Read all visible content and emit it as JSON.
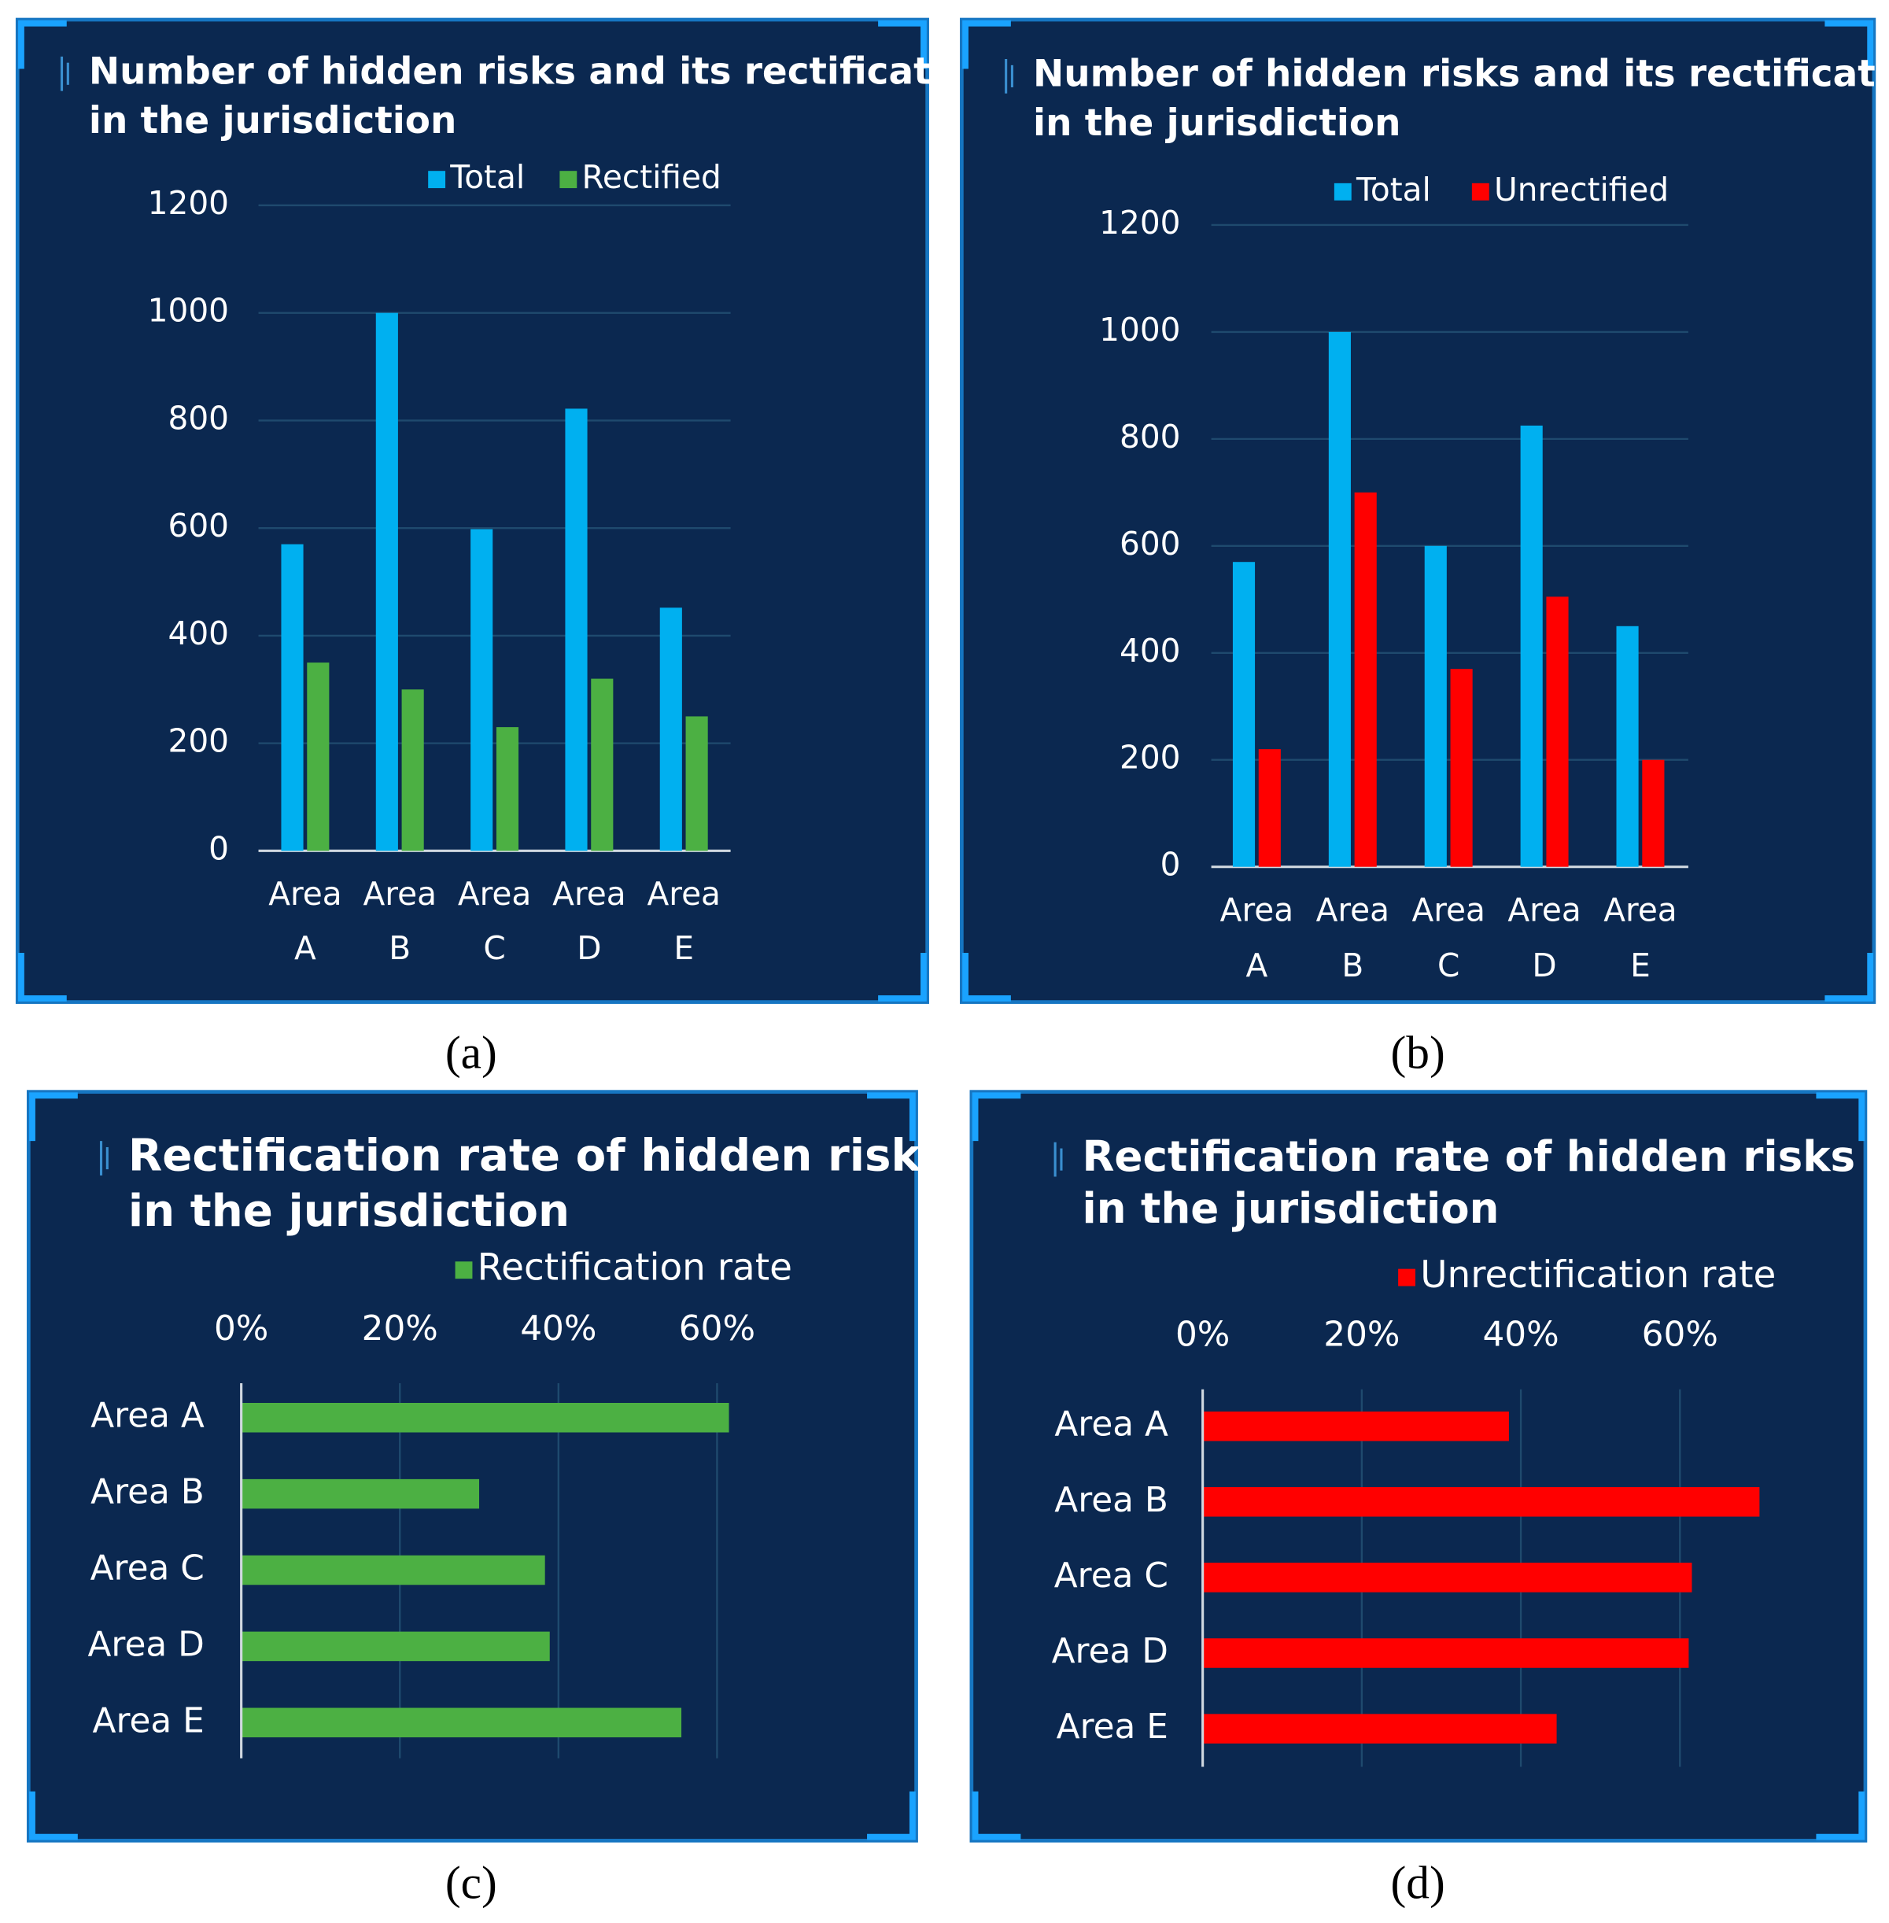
{
  "chart_data": [
    {
      "type": "bar",
      "orientation": "vertical",
      "label": "(a)",
      "title": [
        "Number of hidden risks  and its rectification",
        "in the jurisdiction"
      ],
      "categories": [
        "Area A",
        "Area B",
        "Area C",
        "Area D",
        "Area E"
      ],
      "series": [
        {
          "name": "Total",
          "color": "#00b0f0",
          "values": [
            570,
            1000,
            598,
            822,
            452
          ]
        },
        {
          "name": "Rectified",
          "color": "#4cb043",
          "values": [
            350,
            300,
            230,
            320,
            250
          ]
        }
      ],
      "ylim": [
        0,
        1200
      ],
      "yticks": [
        0,
        200,
        400,
        600,
        800,
        1000,
        1200
      ],
      "grid": true
    },
    {
      "type": "bar",
      "orientation": "vertical",
      "label": "(b)",
      "title": [
        "Number of hidden risks  and its rectification",
        "in the jurisdiction"
      ],
      "categories": [
        "Area A",
        "Area B",
        "Area C",
        "Area D",
        "Area E"
      ],
      "series": [
        {
          "name": "Total",
          "color": "#00b0f0",
          "values": [
            570,
            1000,
            600,
            825,
            450
          ]
        },
        {
          "name": "Unrectified",
          "color": "#ff0000",
          "values": [
            220,
            700,
            370,
            505,
            200
          ]
        }
      ],
      "ylim": [
        0,
        1200
      ],
      "yticks": [
        0,
        200,
        400,
        600,
        800,
        1000,
        1200
      ],
      "grid": true
    },
    {
      "type": "bar",
      "orientation": "horizontal",
      "label": "(c)",
      "title": [
        "Rectification rate of hidden risks",
        "in the jurisdiction"
      ],
      "categories": [
        "Area A",
        "Area B",
        "Area C",
        "Area D",
        "Area E"
      ],
      "series": [
        {
          "name": "Rectification rate",
          "color": "#4cb043",
          "values": [
            61.5,
            30,
            38.3,
            38.9,
            55.5
          ]
        }
      ],
      "xlim": [
        0,
        65
      ],
      "xticks": [
        {
          "value": 0,
          "label": "0%"
        },
        {
          "value": 20,
          "label": "20%"
        },
        {
          "value": 40,
          "label": "40%"
        },
        {
          "value": 60,
          "label": "60%"
        }
      ],
      "grid": true
    },
    {
      "type": "bar",
      "orientation": "horizontal",
      "label": "(d)",
      "title": [
        "Rectification rate of hidden risks",
        "in the jurisdiction"
      ],
      "categories": [
        "Area A",
        "Area B",
        "Area C",
        "Area D",
        "Area E"
      ],
      "series": [
        {
          "name": "Unrectification rate",
          "color": "#ff0000",
          "values": [
            38.5,
            70,
            61.5,
            61.1,
            44.5
          ]
        }
      ],
      "xlim": [
        0,
        72
      ],
      "xticks": [
        {
          "value": 0,
          "label": "0%"
        },
        {
          "value": 20,
          "label": "20%"
        },
        {
          "value": 40,
          "label": "40%"
        },
        {
          "value": 60,
          "label": "60%"
        }
      ],
      "grid": true
    }
  ]
}
